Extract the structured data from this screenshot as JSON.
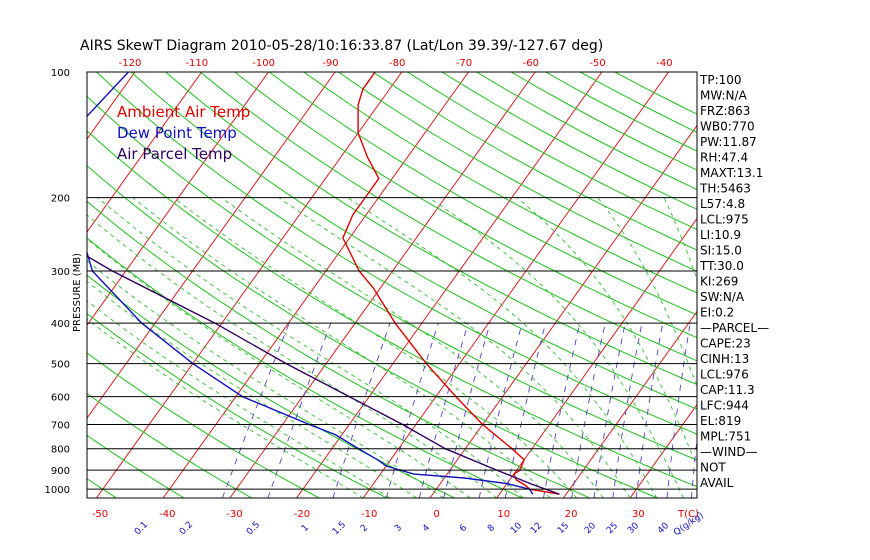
{
  "chart_data": {
    "type": "line",
    "title": "AIRS SkewT Diagram 2010-05-28/10:16:33.87 (Lat/Lon 39.39/-127.67 deg)",
    "ylabel": "PRESSURE (MB)",
    "y_scale": "log",
    "ylim": [
      1050,
      100
    ],
    "pressure_ticks": [
      100,
      200,
      300,
      400,
      500,
      600,
      700,
      800,
      900,
      1000
    ],
    "top_temp_ticks": [
      -120,
      -110,
      -100,
      -90,
      -80,
      -70,
      -60,
      -50,
      -40
    ],
    "bottom_temp_ticks": [
      -50,
      -40,
      -30,
      -20,
      -10,
      0,
      10,
      20,
      30
    ],
    "bottom_temp_unit": "T(C)",
    "mixing_ratio_ticks": [
      "0.1",
      "0.2",
      "0.5",
      "1",
      "1.5",
      "2",
      "3",
      "4",
      "6",
      "8",
      "10",
      "12",
      "15",
      "20",
      "25",
      "30",
      "40"
    ],
    "mixing_ratio_unit": "Q(g/kg)",
    "legend": [
      {
        "label": "Ambient Air Temp",
        "color": "#e00000"
      },
      {
        "label": "Dew Point Temp",
        "color": "#1010c0"
      },
      {
        "label": "Air Parcel Temp",
        "color": "#300060"
      }
    ],
    "series": [
      {
        "name": "Ambient Air Temp",
        "color": "#e00000",
        "points": [
          [
            1028,
            9.0
          ],
          [
            1000,
            4.0
          ],
          [
            980,
            3.0
          ],
          [
            950,
            1.0
          ],
          [
            920,
            0.0
          ],
          [
            900,
            0.5
          ],
          [
            850,
            0.0
          ],
          [
            800,
            -3.0
          ],
          [
            700,
            -10.0
          ],
          [
            600,
            -17.0
          ],
          [
            500,
            -25.0
          ],
          [
            400,
            -34.0
          ],
          [
            330,
            -41.0
          ],
          [
            300,
            -45.0
          ],
          [
            250,
            -51.0
          ],
          [
            220,
            -52.0
          ],
          [
            200,
            -52.0
          ],
          [
            180,
            -52.0
          ],
          [
            160,
            -56.0
          ],
          [
            140,
            -60.0
          ],
          [
            120,
            -63.0
          ],
          [
            110,
            -64.0
          ],
          [
            100,
            -64.0
          ]
        ]
      },
      {
        "name": "Dew Point Temp",
        "color": "#1010c0",
        "points": [
          [
            1028,
            5.0
          ],
          [
            1000,
            4.0
          ],
          [
            970,
            0.0
          ],
          [
            940,
            -7.0
          ],
          [
            920,
            -15.0
          ],
          [
            880,
            -20.0
          ],
          [
            850,
            -22.0
          ],
          [
            800,
            -26.0
          ],
          [
            740,
            -31.0
          ],
          [
            700,
            -36.0
          ],
          [
            600,
            -49.0
          ],
          [
            500,
            -60.0
          ],
          [
            400,
            -72.0
          ],
          [
            300,
            -85.0
          ],
          [
            250,
            -90.0
          ],
          [
            200,
            -95.0
          ],
          [
            160,
            -100.0
          ],
          [
            140,
            -103.0
          ],
          [
            100,
            -101.0
          ]
        ]
      },
      {
        "name": "Air Parcel Temp",
        "color": "#300060",
        "points": [
          [
            1028,
            9.0
          ],
          [
            975,
            4.0
          ],
          [
            900,
            -3.0
          ],
          [
            800,
            -13.0
          ],
          [
            700,
            -22.0
          ],
          [
            600,
            -33.0
          ],
          [
            500,
            -46.0
          ],
          [
            400,
            -61.0
          ],
          [
            300,
            -82.0
          ],
          [
            250,
            -94.0
          ],
          [
            200,
            -106.0
          ],
          [
            150,
            -121.0
          ],
          [
            100,
            -140.0
          ]
        ]
      }
    ],
    "stats": [
      "TP:100",
      "MW:N/A",
      "FRZ:863",
      "WB0:770",
      "PW:11.87",
      "RH:47.4",
      "MAXT:13.1",
      "TH:5463",
      "L57:4.8",
      "LCL:975",
      "LI:10.9",
      "SI:15.0",
      "TT:30.0",
      "KI:269",
      "SW:N/A",
      "EI:0.2",
      "—PARCEL—",
      "CAPE:23",
      "CINH:13",
      "LCL:976",
      "CAP:11.3",
      "LFC:944",
      "EL:819",
      "MPL:751",
      "—WIND—",
      "NOT",
      "AVAIL"
    ]
  }
}
